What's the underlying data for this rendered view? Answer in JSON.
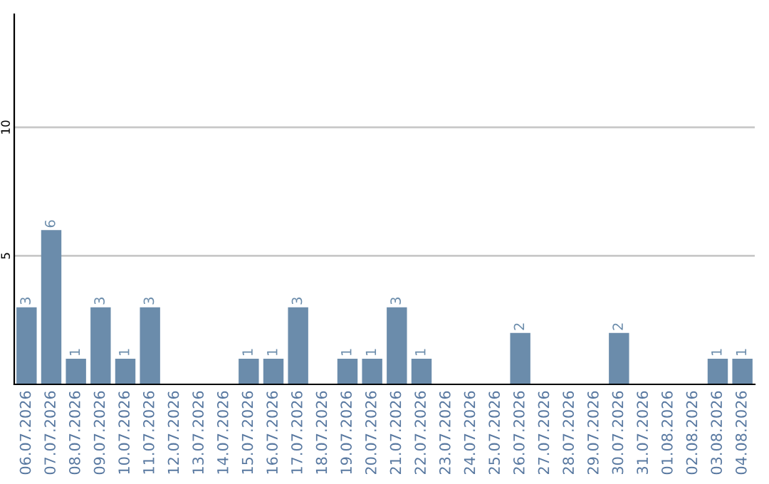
{
  "chart_data": {
    "type": "bar",
    "categories": [
      "06.07.2026",
      "07.07.2026",
      "08.07.2026",
      "09.07.2026",
      "10.07.2026",
      "11.07.2026",
      "12.07.2026",
      "13.07.2026",
      "14.07.2026",
      "15.07.2026",
      "16.07.2026",
      "17.07.2026",
      "18.07.2026",
      "19.07.2026",
      "20.07.2026",
      "21.07.2026",
      "22.07.2026",
      "23.07.2026",
      "24.07.2026",
      "25.07.2026",
      "26.07.2026",
      "27.07.2026",
      "28.07.2026",
      "29.07.2026",
      "30.07.2026",
      "31.07.2026",
      "01.08.2026",
      "02.08.2026",
      "03.08.2026",
      "04.08.2026"
    ],
    "values": [
      3,
      6,
      1,
      3,
      1,
      3,
      0,
      0,
      0,
      1,
      1,
      3,
      0,
      1,
      1,
      3,
      1,
      0,
      0,
      0,
      2,
      0,
      0,
      0,
      2,
      0,
      0,
      0,
      1,
      1
    ],
    "value_labels": [
      "3",
      "6",
      "1",
      "3",
      "1",
      "3",
      null,
      null,
      null,
      "1",
      "1",
      "3",
      null,
      "1",
      "1",
      "3",
      "1",
      null,
      null,
      null,
      "2",
      null,
      null,
      null,
      "2",
      null,
      null,
      null,
      "1",
      "1"
    ],
    "color": "#6b8cab",
    "ylim": [
      0,
      14.4
    ],
    "yticks": [
      5,
      10
    ],
    "grid": "y"
  }
}
